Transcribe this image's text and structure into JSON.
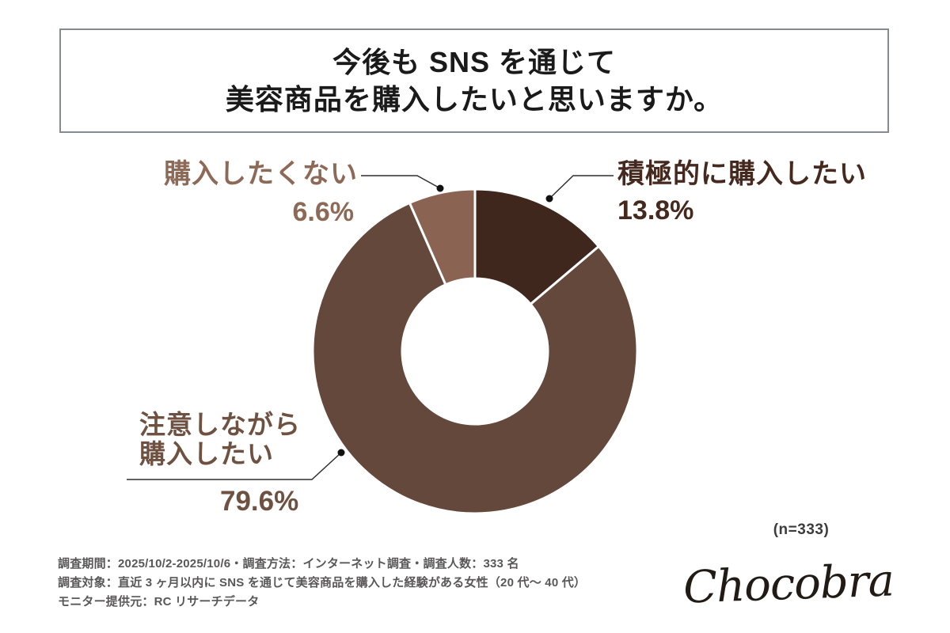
{
  "title": {
    "line1": "今後も SNS を通じて",
    "line2": "美容商品を購入したいと思いますか。"
  },
  "chart_data": {
    "type": "pie",
    "subtype": "donut",
    "title": "今後も SNS を通じて美容商品を購入したいと思いますか。",
    "start_angle_deg": 0,
    "direction": "clockwise",
    "inner_radius_ratio": 0.45,
    "separator_color": "#ffffff",
    "segments": [
      {
        "label": "積極的に購入したい",
        "value": 13.8,
        "display": "13.8%",
        "color": "#40271d"
      },
      {
        "label": "注意しながら購入したい",
        "value": 79.6,
        "display": "79.6%",
        "color": "#65483c"
      },
      {
        "label": "購入したくない",
        "value": 6.6,
        "display": "6.6%",
        "color": "#8a6352"
      }
    ]
  },
  "annotations": {
    "right": {
      "label": "積極的に購入したい",
      "pct": "13.8%",
      "color": "#46291e"
    },
    "left": {
      "label": "購入したくない",
      "pct": "6.6%",
      "color": "#8d6a58"
    },
    "bottom": {
      "line1": "注意しながら",
      "line2": "購入したい",
      "pct": "79.6%",
      "color": "#6f5142"
    }
  },
  "n_label": "(n=333)",
  "footnote": {
    "line1": "調査期間：2025/10/2-2025/10/6・調査方法：インターネット調査・調査人数：333 名",
    "line2": "調査対象：直近 3 ヶ月以内に SNS を通じて美容商品を購入した経験がある女性（20 代〜 40 代）",
    "line3": "モニター提供元：RC リサーチデータ"
  },
  "logo": "Chocobra"
}
